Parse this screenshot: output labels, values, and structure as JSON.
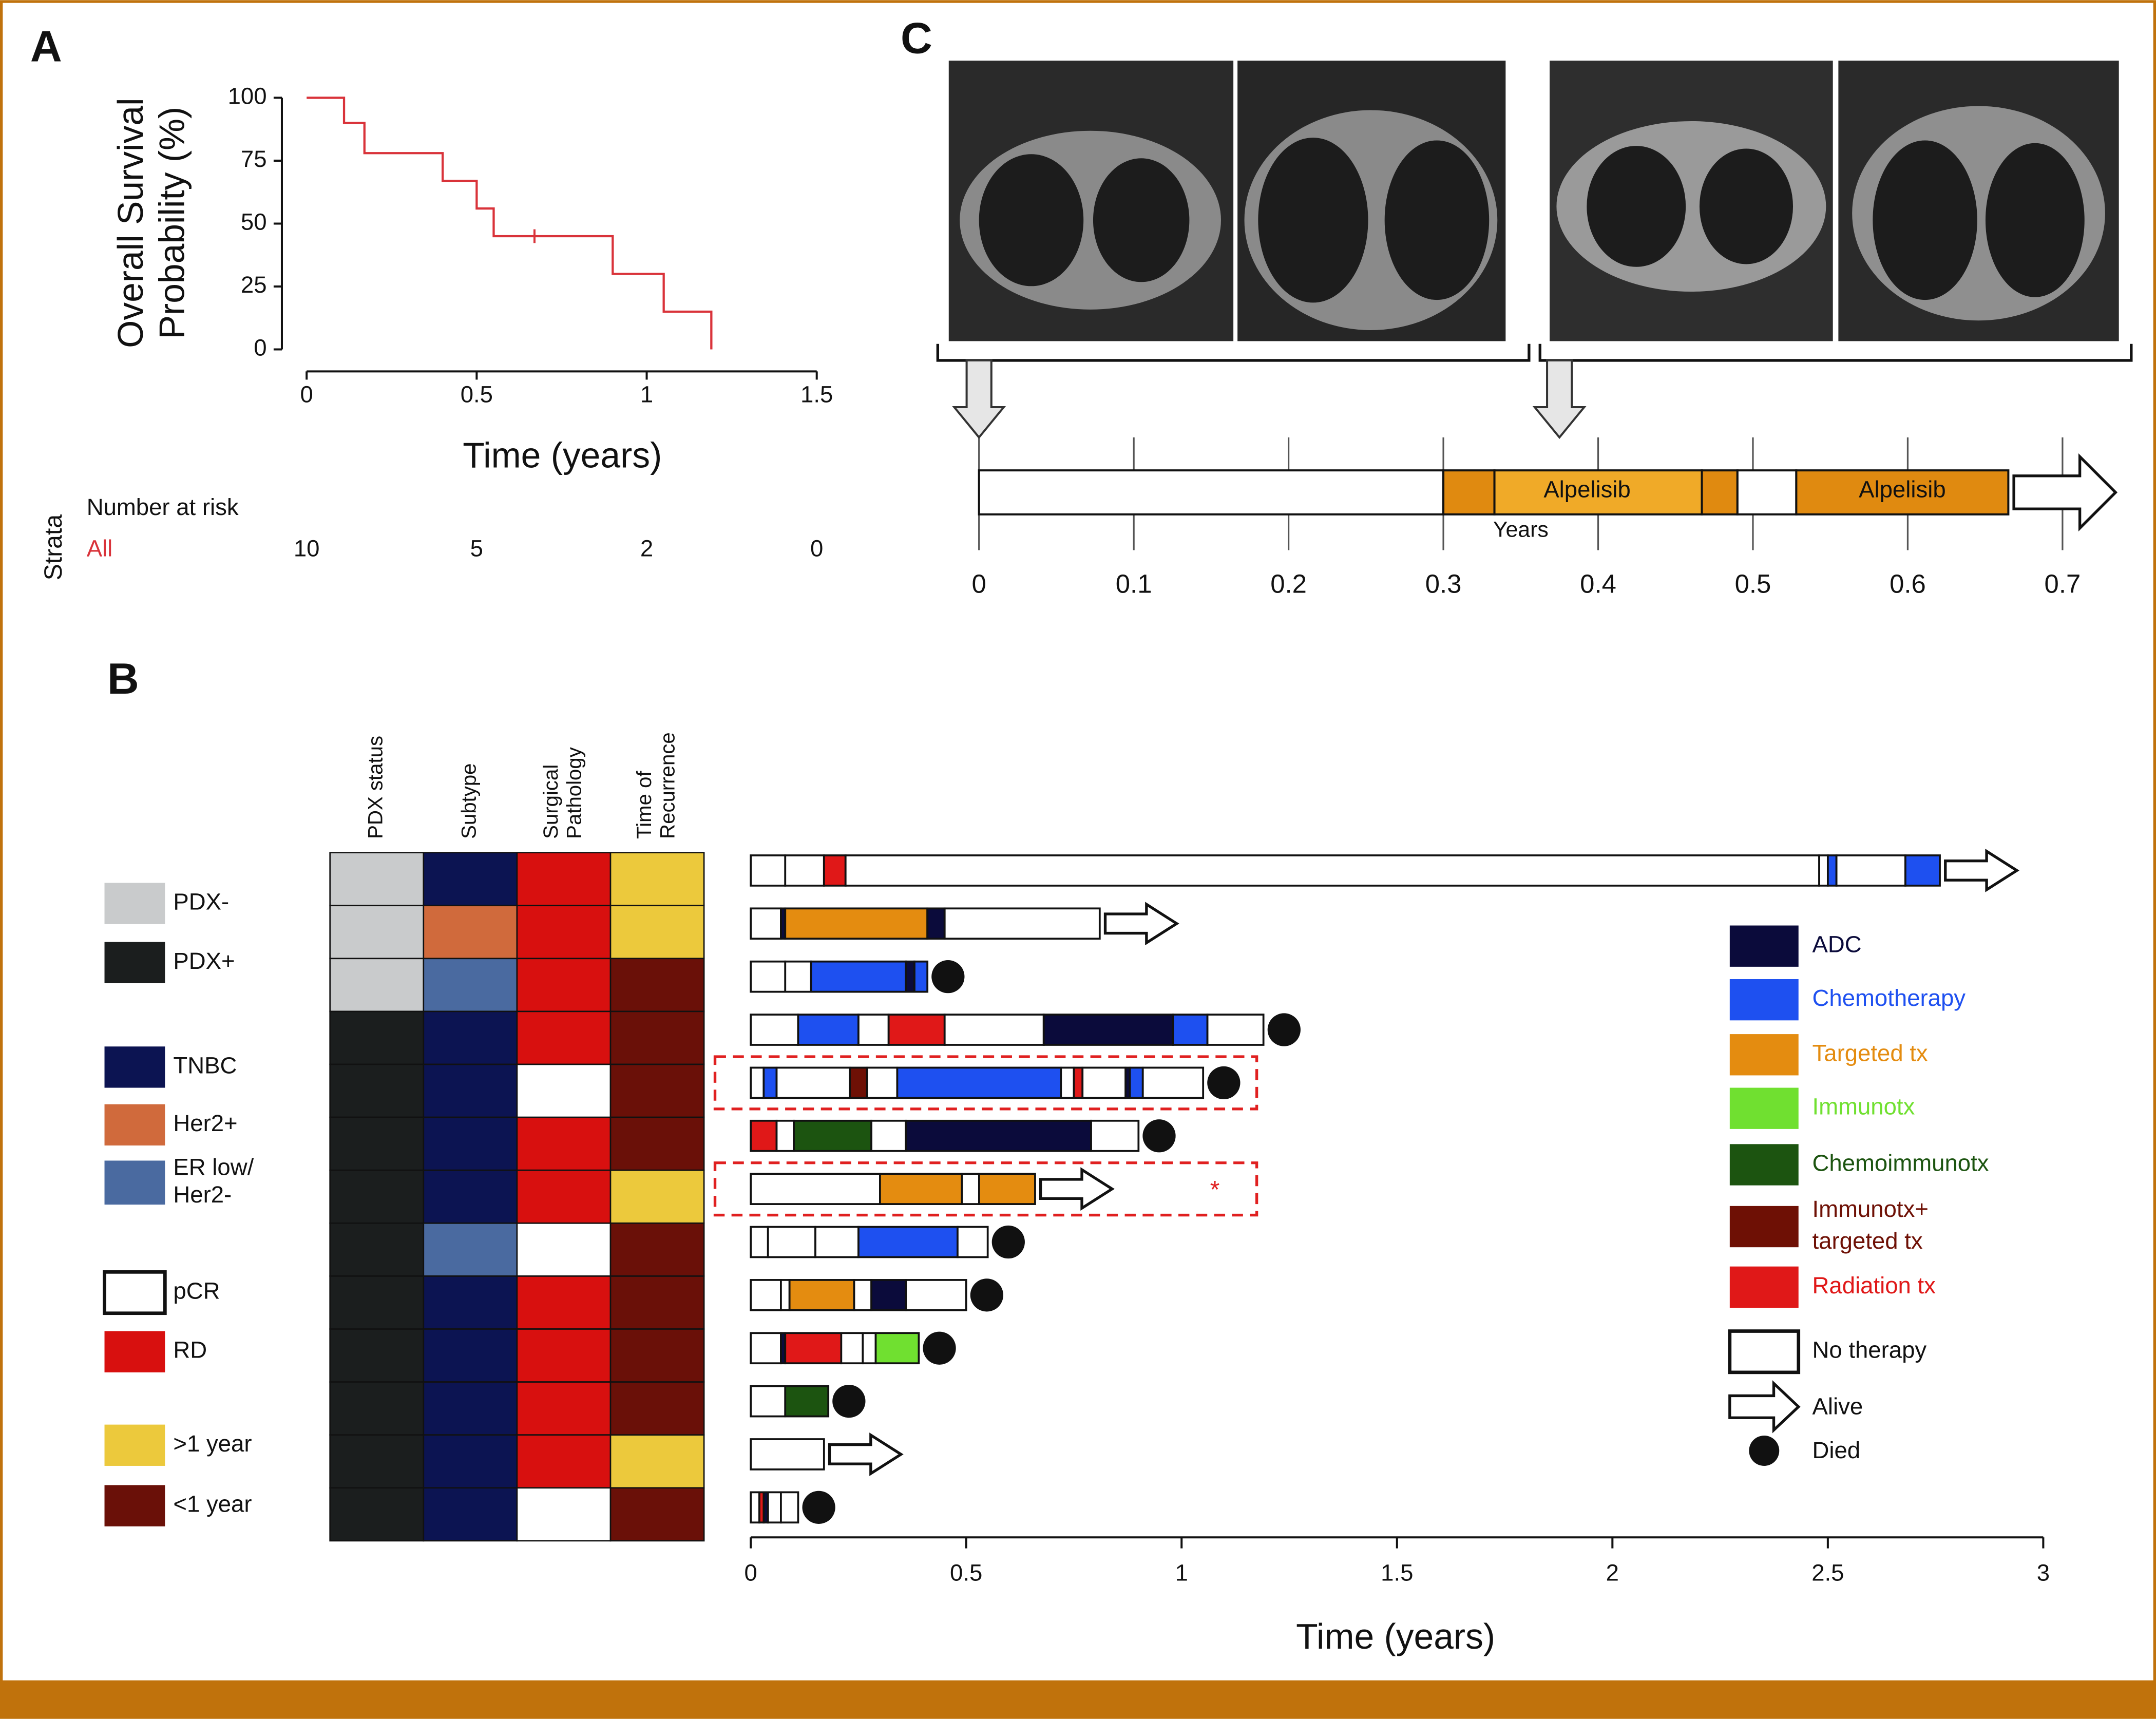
{
  "chart_data": [
    {
      "type": "line",
      "panel": "A",
      "xlabel": "Time (years)",
      "ylabel": [
        "Overall Survival",
        "Probability (%)"
      ],
      "x": [
        0,
        0.11,
        0.17,
        0.4,
        0.5,
        0.55,
        0.9,
        1.05,
        1.19
      ],
      "values": [
        100,
        90,
        78,
        67,
        56,
        45,
        30,
        15,
        0
      ],
      "censor_x": [
        0.67
      ],
      "censor_y": [
        45
      ],
      "color": "#d9333a",
      "xlim": [
        0,
        1.5
      ],
      "ylim": [
        0,
        100
      ],
      "xticks": [
        0,
        0.5,
        1,
        1.5
      ],
      "yticks": [
        0,
        25,
        50,
        75,
        100
      ],
      "risk_table": {
        "strata_label": "Strata",
        "title": "Number at risk",
        "stratum": "All",
        "times": [
          0,
          0.5,
          1,
          1.5
        ],
        "counts": [
          10,
          5,
          2,
          0
        ]
      }
    },
    {
      "type": "timeline",
      "panel": "C",
      "xlabel": "Years",
      "xlim": [
        0,
        0.7
      ],
      "xticks": [
        0,
        0.1,
        0.2,
        0.3,
        0.4,
        0.5,
        0.6,
        0.7
      ],
      "scan_times": [
        0,
        0.375
      ],
      "segments": [
        {
          "start": 0,
          "end": 0.3,
          "color": "#ffffff"
        },
        {
          "start": 0.3,
          "end": 0.333,
          "color": "#e08a10"
        },
        {
          "start": 0.333,
          "end": 0.467,
          "color": "#f0aa28",
          "label": "Alpelisib"
        },
        {
          "start": 0.467,
          "end": 0.49,
          "color": "#e08a10"
        },
        {
          "start": 0.49,
          "end": 0.528,
          "color": "#ffffff"
        },
        {
          "start": 0.528,
          "end": 0.665,
          "color": "#e08a10",
          "label": "Alpelisib"
        }
      ]
    },
    {
      "type": "heatmap",
      "panel": "B",
      "columns": [
        [
          "PDX status"
        ],
        [
          "Subtype"
        ],
        [
          "Surgical",
          "Pathology"
        ],
        [
          "Time of",
          "Recurrence"
        ]
      ],
      "categories": [
        {
          "name": [
            "PDX-"
          ],
          "color": "#c9cbcc"
        },
        {
          "name": [
            "PDX+"
          ],
          "color": "#1b1e1e"
        },
        {
          "name": [
            "TNBC"
          ],
          "color": "#0c1452"
        },
        {
          "name": [
            "Her2+"
          ],
          "color": "#d06a3c"
        },
        {
          "name": [
            "ER low/",
            "Her2-"
          ],
          "color": "#4a6aa0"
        },
        {
          "name": [
            "pCR"
          ],
          "color": "#ffffff"
        },
        {
          "name": [
            "RD"
          ],
          "color": "#d8100f"
        },
        {
          "name": [
            ">1 year"
          ],
          "color": "#ecc93c"
        },
        {
          "name": [
            "<1 year"
          ],
          "color": "#6a1008"
        }
      ],
      "cells": [
        [
          0,
          2,
          6,
          7
        ],
        [
          0,
          3,
          6,
          7
        ],
        [
          0,
          4,
          6,
          8
        ],
        [
          1,
          2,
          6,
          8
        ],
        [
          1,
          2,
          5,
          8
        ],
        [
          1,
          2,
          6,
          8
        ],
        [
          1,
          2,
          6,
          7
        ],
        [
          1,
          4,
          5,
          8
        ],
        [
          1,
          2,
          6,
          8
        ],
        [
          1,
          2,
          6,
          8
        ],
        [
          1,
          2,
          6,
          8
        ],
        [
          1,
          2,
          6,
          7
        ],
        [
          1,
          2,
          5,
          8
        ]
      ]
    },
    {
      "type": "swimmer",
      "xlabel": "Time (years)",
      "xlim": [
        0,
        3
      ],
      "xticks": [
        0,
        0.5,
        1,
        1.5,
        2,
        2.5,
        3
      ],
      "therapies": [
        {
          "name": [
            "ADC"
          ],
          "color": "#0b0b3b"
        },
        {
          "name": [
            "Chemotherapy"
          ],
          "color": "#1e50f0"
        },
        {
          "name": [
            "Targeted tx"
          ],
          "color": "#e48c10"
        },
        {
          "name": [
            "Immunotx"
          ],
          "color": "#70e030"
        },
        {
          "name": [
            "Chemoimmunotx"
          ],
          "color": "#1c5410"
        },
        {
          "name": [
            "Immunotx+",
            "targeted tx"
          ],
          "color": "#6e1005"
        },
        {
          "name": [
            "Radiation tx"
          ],
          "color": "#e01818"
        },
        {
          "name": [
            "No therapy"
          ],
          "color": "#ffffff"
        }
      ],
      "outcomes": [
        "Alive",
        "Died"
      ],
      "highlight_rows": [
        4,
        6
      ],
      "annotations": [
        {
          "row": 6,
          "text": "*"
        }
      ],
      "rows": [
        {
          "segments": [
            [
              0,
              0.08,
              7
            ],
            [
              0.08,
              0.17,
              7
            ],
            [
              0.17,
              0.22,
              6
            ],
            [
              0.22,
              2.48,
              7
            ],
            [
              2.48,
              2.5,
              7
            ],
            [
              2.5,
              2.52,
              1
            ],
            [
              2.52,
              2.68,
              7
            ],
            [
              2.68,
              2.76,
              1
            ]
          ],
          "outcome": 0
        },
        {
          "segments": [
            [
              0,
              0.07,
              7
            ],
            [
              0.07,
              0.08,
              0
            ],
            [
              0.08,
              0.41,
              2
            ],
            [
              0.41,
              0.45,
              0
            ],
            [
              0.45,
              0.81,
              7
            ]
          ],
          "outcome": 0
        },
        {
          "segments": [
            [
              0,
              0.08,
              7
            ],
            [
              0.08,
              0.14,
              7
            ],
            [
              0.14,
              0.36,
              1
            ],
            [
              0.36,
              0.38,
              0
            ],
            [
              0.38,
              0.41,
              1
            ]
          ],
          "outcome": 1
        },
        {
          "segments": [
            [
              0,
              0.11,
              7
            ],
            [
              0.11,
              0.25,
              1
            ],
            [
              0.25,
              0.32,
              7
            ],
            [
              0.32,
              0.45,
              6
            ],
            [
              0.45,
              0.68,
              7
            ],
            [
              0.68,
              0.98,
              0
            ],
            [
              0.98,
              1.06,
              1
            ],
            [
              1.06,
              1.19,
              7
            ]
          ],
          "outcome": 1
        },
        {
          "segments": [
            [
              0,
              0.03,
              7
            ],
            [
              0.03,
              0.06,
              1
            ],
            [
              0.06,
              0.23,
              7
            ],
            [
              0.23,
              0.27,
              5
            ],
            [
              0.27,
              0.34,
              7
            ],
            [
              0.34,
              0.72,
              1
            ],
            [
              0.72,
              0.75,
              7
            ],
            [
              0.75,
              0.77,
              6
            ],
            [
              0.77,
              0.87,
              7
            ],
            [
              0.87,
              0.88,
              0
            ],
            [
              0.88,
              0.91,
              1
            ],
            [
              0.91,
              1.05,
              7
            ]
          ],
          "outcome": 1
        },
        {
          "segments": [
            [
              0,
              0.06,
              6
            ],
            [
              0.06,
              0.1,
              7
            ],
            [
              0.1,
              0.28,
              4
            ],
            [
              0.28,
              0.36,
              7
            ],
            [
              0.36,
              0.79,
              0
            ],
            [
              0.79,
              0.9,
              7
            ]
          ],
          "outcome": 1
        },
        {
          "segments": [
            [
              0,
              0.3,
              7
            ],
            [
              0.3,
              0.49,
              2
            ],
            [
              0.49,
              0.53,
              7
            ],
            [
              0.53,
              0.66,
              2
            ]
          ],
          "outcome": 0
        },
        {
          "segments": [
            [
              0,
              0.04,
              7
            ],
            [
              0.04,
              0.15,
              7
            ],
            [
              0.15,
              0.25,
              7
            ],
            [
              0.25,
              0.48,
              1
            ],
            [
              0.48,
              0.55,
              7
            ]
          ],
          "outcome": 1
        },
        {
          "segments": [
            [
              0,
              0.07,
              7
            ],
            [
              0.07,
              0.09,
              7
            ],
            [
              0.09,
              0.24,
              2
            ],
            [
              0.24,
              0.28,
              7
            ],
            [
              0.28,
              0.36,
              0
            ],
            [
              0.36,
              0.5,
              7
            ]
          ],
          "outcome": 1
        },
        {
          "segments": [
            [
              0,
              0.07,
              7
            ],
            [
              0.07,
              0.08,
              0
            ],
            [
              0.08,
              0.21,
              6
            ],
            [
              0.21,
              0.26,
              7
            ],
            [
              0.26,
              0.29,
              7
            ],
            [
              0.29,
              0.39,
              3
            ]
          ],
          "outcome": 1
        },
        {
          "segments": [
            [
              0,
              0.08,
              7
            ],
            [
              0.08,
              0.18,
              4
            ]
          ],
          "outcome": 1
        },
        {
          "segments": [
            [
              0,
              0.17,
              7
            ]
          ],
          "outcome": 0
        },
        {
          "segments": [
            [
              0,
              0.02,
              7
            ],
            [
              0.02,
              0.03,
              6
            ],
            [
              0.03,
              0.04,
              0
            ],
            [
              0.04,
              0.07,
              7
            ],
            [
              0.07,
              0.11,
              7
            ]
          ],
          "outcome": 1
        }
      ]
    }
  ]
}
